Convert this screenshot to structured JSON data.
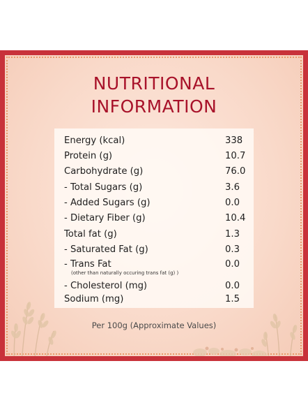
{
  "title_line1": "NUTRITIONAL",
  "title_line2": "INFORMATION",
  "rows": [
    {
      "label": "Energy (kcal)",
      "value": "338"
    },
    {
      "label": "Protein (g)",
      "value": "10.7"
    },
    {
      "label": "Carbohydrate (g)",
      "value": "76.0"
    },
    {
      "label": "- Total Sugars (g)",
      "value": "3.6"
    },
    {
      "label": "- Added Sugars (g)",
      "value": "0.0"
    },
    {
      "label": "- Dietary Fiber (g)",
      "value": "10.4"
    },
    {
      "label": "Total fat (g)",
      "value": "1.3"
    },
    {
      "label": "- Saturated Fat (g)",
      "value": "0.3"
    },
    {
      "label": "- Trans Fat",
      "value": "0.0",
      "note": "(other than naturally occuring trans fat (g) )"
    },
    {
      "label": "- Cholesterol (mg)",
      "value": "0.0"
    },
    {
      "label": "Sodium (mg)",
      "value": "1.5"
    }
  ],
  "footer": "Per 100g (Approximate Values)",
  "colors": {
    "title": "#a8122a",
    "border": "#c8323a",
    "background": "#f9d9c9"
  },
  "icons": {
    "left_decoration": "wheat-stalks-icon",
    "right_decoration": "wheat-stalks-icon",
    "bottom_decoration": "grains-pile-icon"
  }
}
